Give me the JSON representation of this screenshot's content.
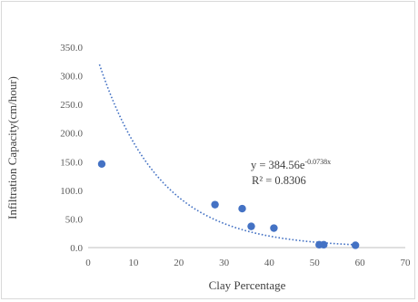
{
  "chart_data": {
    "type": "scatter",
    "title": "",
    "xlabel": "Clay Percentage",
    "ylabel": "Infiltration Capacity(cm/hour)",
    "xlim": [
      0,
      70
    ],
    "ylim": [
      0,
      350
    ],
    "x_ticks": [
      "0",
      "10",
      "20",
      "30",
      "40",
      "50",
      "60",
      "70"
    ],
    "y_ticks": [
      "0.0",
      "50.0",
      "100.0",
      "150.0",
      "200.0",
      "250.0",
      "300.0",
      "350.0"
    ],
    "grid": false,
    "legend": "none",
    "series": [
      {
        "values": [
          {
            "x": 3,
            "y": 146
          },
          {
            "x": 28,
            "y": 75
          },
          {
            "x": 34,
            "y": 68
          },
          {
            "x": 36,
            "y": 37
          },
          {
            "x": 41,
            "y": 34
          },
          {
            "x": 51,
            "y": 5
          },
          {
            "x": 52,
            "y": 5
          },
          {
            "x": 59,
            "y": 4
          }
        ],
        "color": "#4472c4"
      }
    ],
    "trendline": {
      "type": "exponential",
      "a": 384.56,
      "b": -0.0738,
      "x_range": [
        2.5,
        59.5
      ],
      "color": "#4472c4",
      "style": "dotted"
    },
    "annotations": {
      "equation_main": "y = 384.56e",
      "equation_exponent": "-0.0738x",
      "r_squared": "R² = 0.8306"
    }
  }
}
